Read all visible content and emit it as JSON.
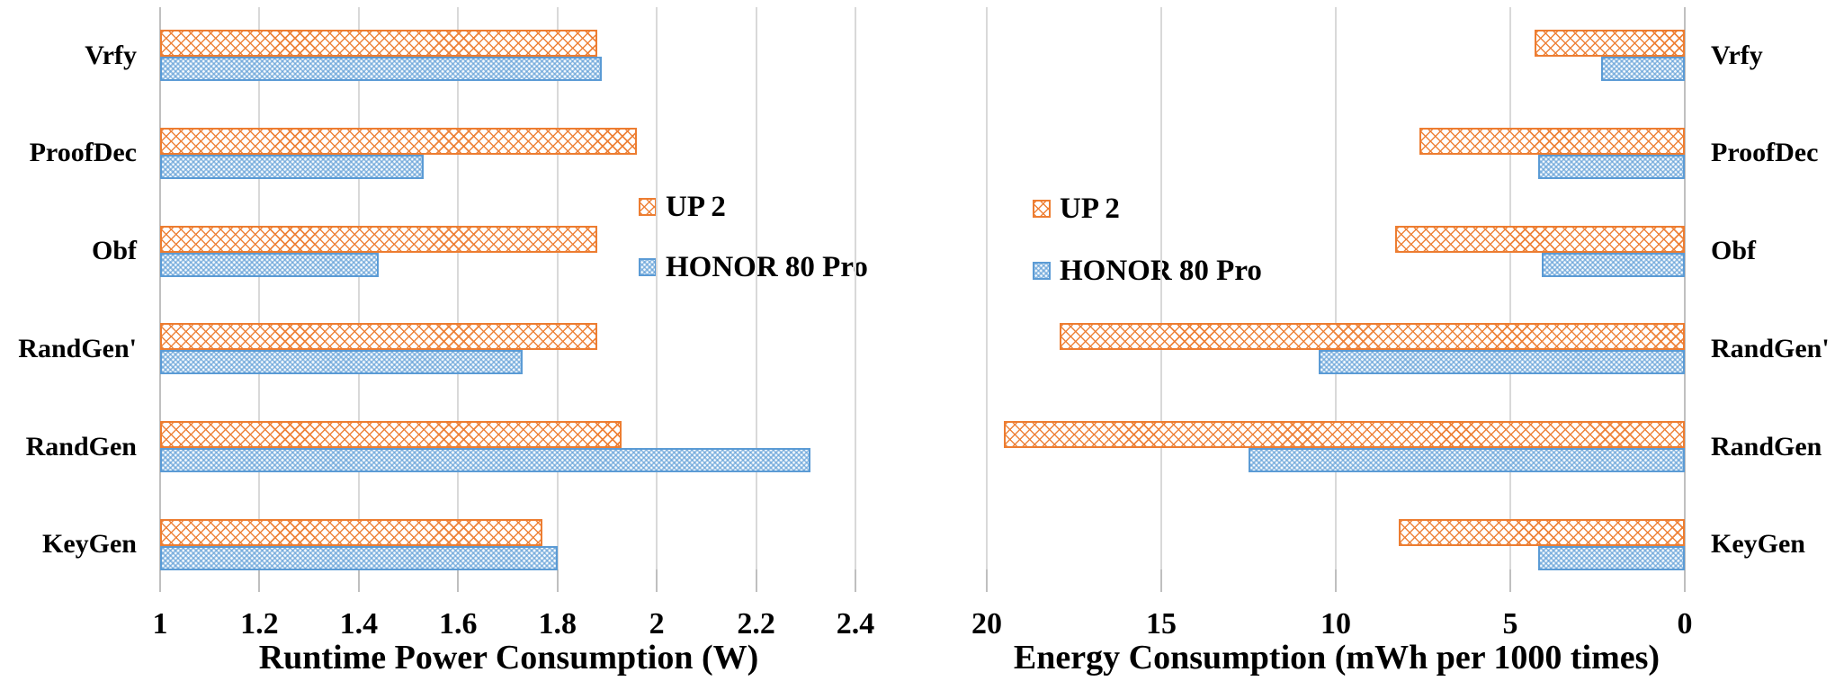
{
  "colors": {
    "up2_accent": "#ED7D31",
    "honor_accent": "#5B9BD5",
    "gridline": "#D9D9D9",
    "tick": "#BFBFBF",
    "text": "#000000",
    "background": "#FFFFFF"
  },
  "legend_labels": {
    "up2": "UP 2",
    "honor": "HONOR 80 Pro"
  },
  "chart_data": [
    {
      "type": "bar",
      "orientation": "horizontal",
      "title": "Runtime Power Consumption (W)",
      "xlabel": "Runtime Power Consumption (W)",
      "ylabel": "",
      "categories_top_to_bottom": [
        "Vrfy",
        "ProofDec",
        "Obf",
        "RandGen'",
        "RandGen",
        "KeyGen"
      ],
      "axis": {
        "min": 1,
        "max": 2.4,
        "reversed": false,
        "tick_labels": [
          "1",
          "1.2",
          "1.4",
          "1.6",
          "1.8",
          "2",
          "2.2",
          "2.4"
        ],
        "tick_values": [
          1,
          1.2,
          1.4,
          1.6,
          1.8,
          2,
          2.2,
          2.4
        ],
        "grid": true
      },
      "series": [
        {
          "name": "UP 2",
          "values": [
            1.88,
            1.96,
            1.88,
            1.88,
            1.93,
            1.77
          ]
        },
        {
          "name": "HONOR 80 Pro",
          "values": [
            1.89,
            1.53,
            1.44,
            1.73,
            2.31,
            1.8
          ]
        }
      ],
      "legend_position": "inside-right"
    },
    {
      "type": "bar",
      "orientation": "horizontal",
      "title": "Energy Consumption (mWh per 1000 times)",
      "xlabel": "Energy Consumption (mWh per 1000 times)",
      "ylabel": "",
      "categories_top_to_bottom": [
        "Vrfy",
        "ProofDec",
        "Obf",
        "RandGen'",
        "RandGen",
        "KeyGen"
      ],
      "axis": {
        "min": 0,
        "max": 20,
        "reversed": true,
        "tick_labels": [
          "20",
          "15",
          "10",
          "5",
          "0"
        ],
        "tick_values": [
          20,
          15,
          10,
          5,
          0
        ],
        "grid": true
      },
      "series": [
        {
          "name": "UP 2",
          "values": [
            4.3,
            7.6,
            8.3,
            17.9,
            19.5,
            8.2
          ]
        },
        {
          "name": "HONOR 80 Pro",
          "values": [
            2.4,
            4.2,
            4.1,
            10.5,
            12.5,
            4.2
          ]
        }
      ],
      "legend_position": "inside-left"
    }
  ]
}
